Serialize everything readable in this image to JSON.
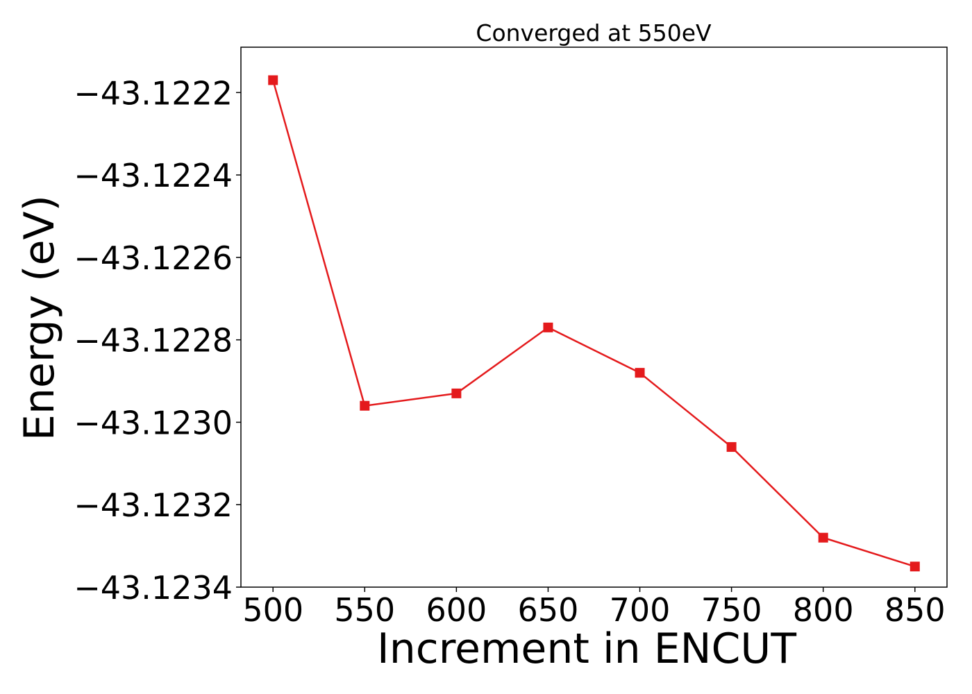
{
  "chart_data": {
    "type": "line",
    "title": "Converged at 550eV",
    "xlabel": "Increment in ENCUT",
    "ylabel": "Energy (eV)",
    "x": [
      500,
      550,
      600,
      650,
      700,
      750,
      800,
      850
    ],
    "series": [
      {
        "values": [
          -43.12217,
          -43.12296,
          -43.12293,
          -43.12277,
          -43.12288,
          -43.12306,
          -43.12328,
          -43.12335
        ],
        "color": "#e41a1c",
        "marker": "square"
      }
    ],
    "xlim": [
      482.5,
      867.5
    ],
    "ylim": [
      -43.1234,
      -43.12209
    ],
    "xticks": [
      500,
      550,
      600,
      650,
      700,
      750,
      800,
      850
    ],
    "xtick_labels": [
      "500",
      "550",
      "600",
      "650",
      "700",
      "750",
      "800",
      "850"
    ],
    "yticks": [
      -43.1234,
      -43.1232,
      -43.123,
      -43.1228,
      -43.1226,
      -43.1224,
      -43.1222
    ],
    "ytick_labels": [
      "−43.1234",
      "−43.1232",
      "−43.1230",
      "−43.1228",
      "−43.1226",
      "−43.1224",
      "−43.1222"
    ],
    "grid": false,
    "legend": "none"
  }
}
